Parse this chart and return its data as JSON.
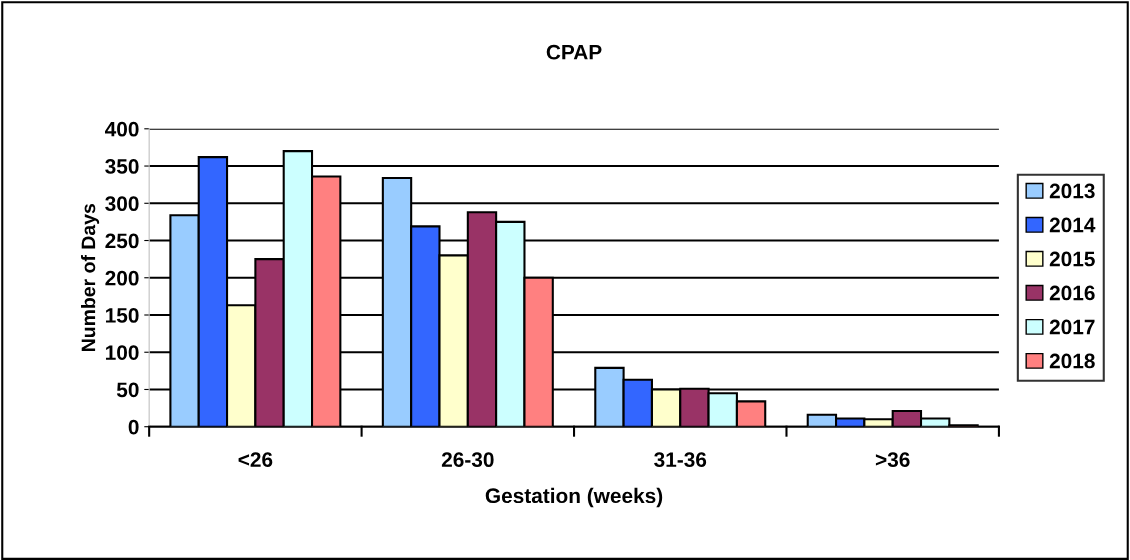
{
  "chart_data": {
    "type": "bar",
    "title": "CPAP",
    "xlabel": "Gestation (weeks)",
    "ylabel": "Number of Days",
    "categories": [
      "<26",
      "26-30",
      "31-36",
      ">36"
    ],
    "series": [
      {
        "name": "2013",
        "color": "#99ccff",
        "values": [
          284,
          334,
          79,
          16
        ]
      },
      {
        "name": "2014",
        "color": "#3366ff",
        "values": [
          362,
          269,
          63,
          11
        ]
      },
      {
        "name": "2015",
        "color": "#ffffcc",
        "values": [
          163,
          230,
          50,
          10
        ]
      },
      {
        "name": "2016",
        "color": "#993366",
        "values": [
          225,
          288,
          51,
          21
        ]
      },
      {
        "name": "2017",
        "color": "#ccffff",
        "values": [
          370,
          275,
          45,
          11
        ]
      },
      {
        "name": "2018",
        "color": "#ff8080",
        "values": [
          336,
          200,
          34,
          2
        ]
      }
    ],
    "ylim": [
      0,
      400
    ],
    "yticks": [
      0,
      50,
      100,
      150,
      200,
      250,
      300,
      350,
      400
    ],
    "grid": "y",
    "legend": "right"
  }
}
